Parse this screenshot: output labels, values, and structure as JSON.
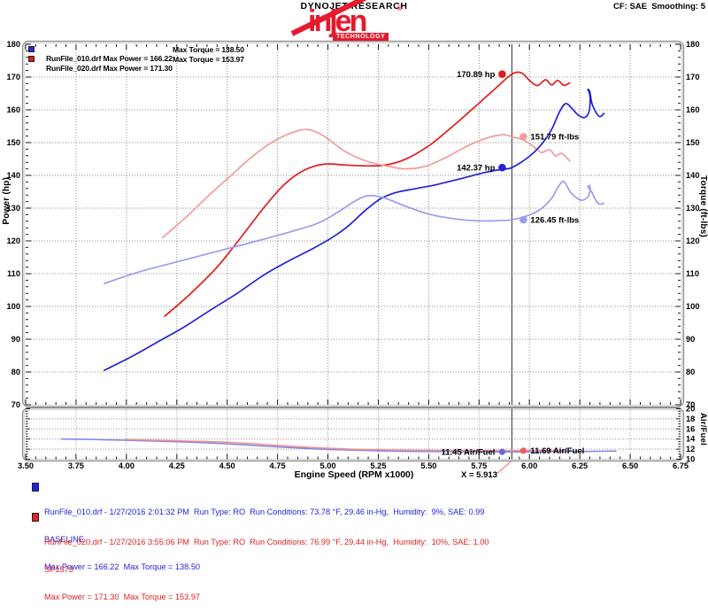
{
  "header": {
    "brand": "DYNOJET RESEARCH",
    "settings": "CF: SAE  Smoothing: 5",
    "logo_text": "injen",
    "logo_mark": "®",
    "logo_sub": "TECHNOLOGY",
    "logo_color": "#e41b2e"
  },
  "legend": {
    "rows": [
      {
        "file": "RunFile_010.drf",
        "power": "Max Power = 166.22",
        "torque": "Max Torque = 138.50",
        "color": "#2a2ae0"
      },
      {
        "file": "RunFile_020.drf",
        "power": "Max Power = 171.30",
        "torque": "Max Torque = 153.97",
        "color": "#e01a1a"
      }
    ]
  },
  "axes": {
    "rpm": {
      "title": "Engine Speed (RPM x1000)",
      "tick_labels": [
        "3.50",
        "3.75",
        "4.00",
        "4.25",
        "4.50",
        "4.75",
        "5.00",
        "5.25",
        "5.50",
        "5.75",
        "6.00",
        "6.25",
        "6.50",
        "6.75"
      ]
    },
    "power": {
      "title": "Power (hp)",
      "tick_labels": [
        "180",
        "170",
        "160",
        "150",
        "140",
        "130",
        "120",
        "110",
        "100",
        "90",
        "80",
        "70"
      ]
    },
    "torque": {
      "title": "Torque (ft-lbs)",
      "tick_labels": [
        "180",
        "170",
        "160",
        "150",
        "140",
        "130",
        "120",
        "110",
        "100",
        "90",
        "80",
        "70"
      ]
    },
    "airfuel": {
      "title": "Air/Fuel",
      "tick_labels": [
        "20",
        "18",
        "16",
        "14",
        "12",
        "10"
      ]
    }
  },
  "cursor": {
    "x": 5.913,
    "label": "X = 5.913",
    "line_color": "#404040",
    "leader_color": "#ef8a8a"
  },
  "chart_data": {
    "type": "line",
    "xlabel": "Engine Speed (RPM x1000)",
    "x_range": [
      3.5,
      6.75
    ],
    "x_tick_step": 0.25,
    "grid": "dotted",
    "cursor_x": 5.913,
    "panels": [
      {
        "id": "main",
        "ylabel_left": "Power (hp)",
        "ylabel_right": "Torque (ft-lbs)",
        "ylim": [
          70,
          180
        ],
        "tick_step": 10,
        "series": [
          {
            "name": "RunFile_020.drf Power",
            "unit": "hp",
            "max": 171.3,
            "color": "#df1b1b",
            "points": [
              [
                4.19,
                97
              ],
              [
                4.32,
                104
              ],
              [
                4.45,
                112
              ],
              [
                4.58,
                122
              ],
              [
                4.68,
                130
              ],
              [
                4.78,
                137
              ],
              [
                4.88,
                141.5
              ],
              [
                4.98,
                143.4
              ],
              [
                5.08,
                143.2
              ],
              [
                5.18,
                142.9
              ],
              [
                5.28,
                143.1
              ],
              [
                5.38,
                144.8
              ],
              [
                5.5,
                149
              ],
              [
                5.62,
                155
              ],
              [
                5.74,
                161.5
              ],
              [
                5.84,
                167
              ],
              [
                5.913,
                170.89
              ],
              [
                5.96,
                171.3
              ],
              [
                6.0,
                169
              ],
              [
                6.04,
                167.4
              ],
              [
                6.08,
                169.2
              ],
              [
                6.11,
                167.6
              ],
              [
                6.14,
                169
              ],
              [
                6.17,
                167.5
              ],
              [
                6.2,
                168.2
              ]
            ]
          },
          {
            "name": "RunFile_020.drf Torque",
            "unit": "ft-lbs",
            "max": 153.97,
            "color": "#f29b9b",
            "points": [
              [
                4.18,
                121
              ],
              [
                4.3,
                127.5
              ],
              [
                4.42,
                134.5
              ],
              [
                4.52,
                140
              ],
              [
                4.62,
                145.5
              ],
              [
                4.72,
                150
              ],
              [
                4.82,
                153
              ],
              [
                4.9,
                153.97
              ],
              [
                4.98,
                152
              ],
              [
                5.08,
                147.5
              ],
              [
                5.18,
                144.6
              ],
              [
                5.28,
                143
              ],
              [
                5.38,
                142
              ],
              [
                5.48,
                142.7
              ],
              [
                5.58,
                145.3
              ],
              [
                5.7,
                149.2
              ],
              [
                5.8,
                151.6
              ],
              [
                5.87,
                152.4
              ],
              [
                5.913,
                151.79
              ],
              [
                5.97,
                150.8
              ],
              [
                6.02,
                148.8
              ],
              [
                6.06,
                147
              ],
              [
                6.1,
                147.8
              ],
              [
                6.13,
                145.9
              ],
              [
                6.16,
                146.7
              ],
              [
                6.2,
                144.4
              ]
            ]
          },
          {
            "name": "RunFile_010.drf Power",
            "unit": "hp",
            "max": 166.22,
            "color": "#2323d4",
            "points": [
              [
                3.89,
                80.5
              ],
              [
                4.02,
                84.5
              ],
              [
                4.15,
                89
              ],
              [
                4.28,
                93.5
              ],
              [
                4.42,
                99
              ],
              [
                4.55,
                104
              ],
              [
                4.68,
                109.5
              ],
              [
                4.8,
                113.7
              ],
              [
                4.92,
                117.5
              ],
              [
                5.02,
                121
              ],
              [
                5.1,
                124.5
              ],
              [
                5.18,
                129
              ],
              [
                5.26,
                132.8
              ],
              [
                5.34,
                134.8
              ],
              [
                5.44,
                136
              ],
              [
                5.54,
                137.2
              ],
              [
                5.66,
                139
              ],
              [
                5.78,
                140.9
              ],
              [
                5.86,
                141.8
              ],
              [
                5.913,
                142.37
              ],
              [
                6.0,
                145.8
              ],
              [
                6.06,
                149.5
              ],
              [
                6.11,
                154
              ],
              [
                6.15,
                159.5
              ],
              [
                6.18,
                161.9
              ],
              [
                6.21,
                160.5
              ],
              [
                6.24,
                158.5
              ],
              [
                6.27,
                157.6
              ],
              [
                6.29,
                158.6
              ],
              [
                6.3,
                161
              ],
              [
                6.3,
                164.5
              ],
              [
                6.29,
                166.22
              ],
              [
                6.3,
                165.5
              ],
              [
                6.31,
                162
              ],
              [
                6.33,
                159.2
              ],
              [
                6.35,
                157.9
              ],
              [
                6.37,
                158.9
              ]
            ]
          },
          {
            "name": "RunFile_010.drf Torque",
            "unit": "ft-lbs",
            "max": 138.5,
            "color": "#9c9cf0",
            "points": [
              [
                3.89,
                107
              ],
              [
                4.05,
                110.3
              ],
              [
                4.25,
                113.6
              ],
              [
                4.45,
                116.8
              ],
              [
                4.65,
                120
              ],
              [
                4.82,
                122.9
              ],
              [
                4.95,
                125.4
              ],
              [
                5.05,
                128.8
              ],
              [
                5.13,
                132
              ],
              [
                5.2,
                133.8
              ],
              [
                5.28,
                133.1
              ],
              [
                5.38,
                130.7
              ],
              [
                5.5,
                128.2
              ],
              [
                5.62,
                126.8
              ],
              [
                5.75,
                126.1
              ],
              [
                5.85,
                126.2
              ],
              [
                5.913,
                126.45
              ],
              [
                6.0,
                127.9
              ],
              [
                6.06,
                129.9
              ],
              [
                6.11,
                133
              ],
              [
                6.14,
                136.2
              ],
              [
                6.17,
                138.2
              ],
              [
                6.2,
                135.2
              ],
              [
                6.23,
                133.3
              ],
              [
                6.26,
                132.4
              ],
              [
                6.29,
                133.4
              ],
              [
                6.3,
                135.2
              ],
              [
                6.3,
                136.8
              ],
              [
                6.29,
                136.5
              ],
              [
                6.31,
                134.8
              ],
              [
                6.33,
                132.3
              ],
              [
                6.35,
                131.2
              ],
              [
                6.37,
                131.5
              ]
            ]
          }
        ]
      },
      {
        "id": "airfuel",
        "ylabel_right": "Air/Fuel",
        "ylim": [
          10,
          20
        ],
        "tick_step": 2,
        "series": [
          {
            "name": "RunFile_010.drf Air/Fuel",
            "color": "#8282e8",
            "points": [
              [
                3.68,
                14
              ],
              [
                3.9,
                13.85
              ],
              [
                4.1,
                13.65
              ],
              [
                4.3,
                13.4
              ],
              [
                4.5,
                13.05
              ],
              [
                4.65,
                12.7
              ],
              [
                4.8,
                12.32
              ],
              [
                4.95,
                12.02
              ],
              [
                5.1,
                11.82
              ],
              [
                5.25,
                11.66
              ],
              [
                5.4,
                11.56
              ],
              [
                5.6,
                11.5
              ],
              [
                5.8,
                11.47
              ],
              [
                5.913,
                11.45
              ],
              [
                6.05,
                11.48
              ],
              [
                6.2,
                11.52
              ],
              [
                6.35,
                11.58
              ],
              [
                6.43,
                11.62
              ]
            ]
          },
          {
            "name": "RunFile_020.drf Air/Fuel",
            "color": "#f09090",
            "points": [
              [
                3.99,
                13.9
              ],
              [
                4.15,
                13.76
              ],
              [
                4.35,
                13.56
              ],
              [
                4.5,
                13.36
              ],
              [
                4.65,
                13.02
              ],
              [
                4.8,
                12.62
              ],
              [
                4.95,
                12.27
              ],
              [
                5.1,
                12.02
              ],
              [
                5.25,
                11.87
              ],
              [
                5.4,
                11.78
              ],
              [
                5.6,
                11.73
              ],
              [
                5.8,
                11.7
              ],
              [
                5.913,
                11.69
              ],
              [
                6.0,
                11.71
              ],
              [
                6.1,
                11.73
              ],
              [
                6.18,
                11.75
              ]
            ]
          }
        ]
      }
    ],
    "markers": [
      {
        "text": "170.89 hp",
        "value": 170.89,
        "panel": "main",
        "series": "RunFile_020.drf Power",
        "color": "#df1b1b",
        "label_side": "left"
      },
      {
        "text": "151.79 ft-lbs",
        "value": 151.79,
        "panel": "main",
        "series": "RunFile_020.drf Torque",
        "color": "#f29b9b",
        "label_side": "right"
      },
      {
        "text": "142.37 hp",
        "value": 142.37,
        "panel": "main",
        "series": "RunFile_010.drf Power",
        "color": "#2323d4",
        "label_side": "left"
      },
      {
        "text": "126.45 ft-lbs",
        "value": 126.45,
        "panel": "main",
        "series": "RunFile_010.drf Torque",
        "color": "#9c9cf0",
        "label_side": "right"
      },
      {
        "text": "11.45 Air/Fuel",
        "value": 11.45,
        "panel": "airfuel",
        "series": "RunFile_010.drf Air/Fuel",
        "color": "#6a6ae0",
        "label_side": "left"
      },
      {
        "text": "11.69 Air/Fuel",
        "value": 11.69,
        "panel": "airfuel",
        "series": "RunFile_020.drf Air/Fuel",
        "color": "#ee5f5f",
        "label_side": "right"
      }
    ]
  },
  "runs": [
    {
      "color": "#2222dd",
      "line1": "RunFile_010.drf - 1/27/2016 2:01:32 PM  Run Type: RO  Run Conditions: 73.78 °F, 29.46 in-Hg,  Humidity:  9%, SAE: 0.99",
      "line2": "BASELINE",
      "line3": "Max Power = 166.22  Max Torque = 138.50"
    },
    {
      "color": "#dd2222",
      "line1": "RunFile_020.drf - 1/27/2016 3:55:06 PM  Run Type: RO  Run Conditions: 76.99 °F, 29.44 in-Hg,  Humidity:  10%, SAE: 1.00",
      "line2": "SP1573",
      "line3": "Max Power = 171.30  Max Torque = 153.97"
    }
  ]
}
